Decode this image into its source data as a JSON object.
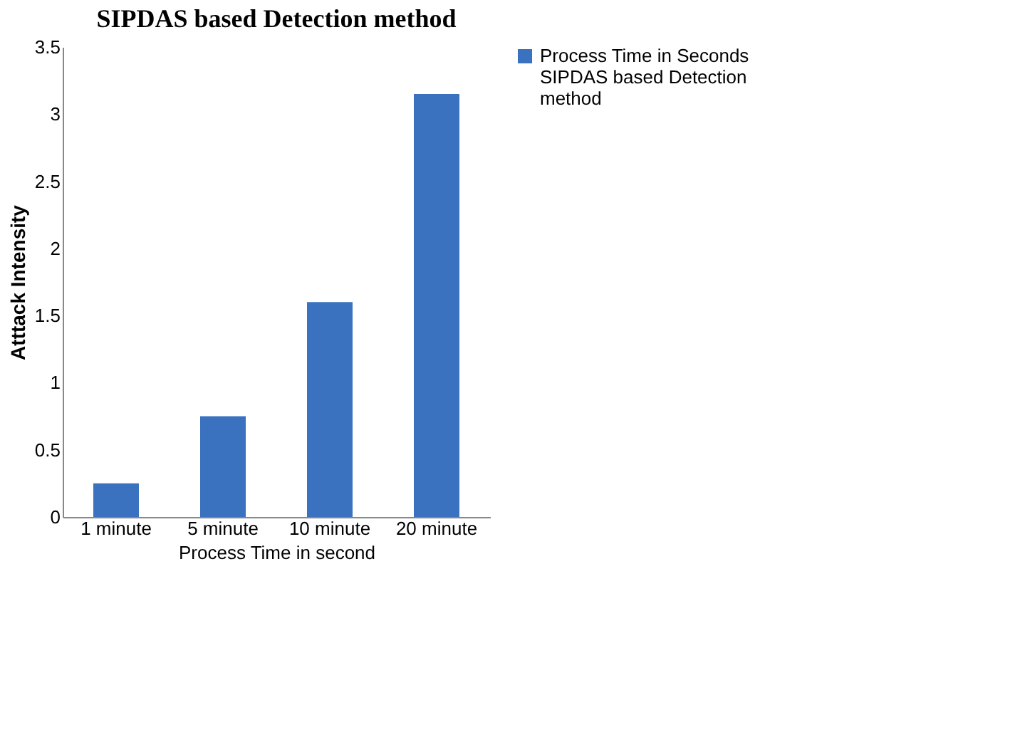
{
  "chart_data": {
    "type": "bar",
    "title": "SIPDAS based  Detection method",
    "xlabel": "Process Time  in second",
    "ylabel": "Atttack Intensity",
    "categories": [
      "1 minute",
      "5 minute",
      "10 minute",
      "20 minute"
    ],
    "series": [
      {
        "name": "Process Time in Seconds SIPDAS based  Detection method",
        "color": "#3a72c0",
        "values": [
          0.25,
          0.75,
          1.6,
          3.15
        ]
      }
    ],
    "ylim": [
      0,
      3.5
    ],
    "yticks": [
      0,
      0.5,
      1,
      1.5,
      2,
      2.5,
      3,
      3.5
    ],
    "grid": false,
    "legend": "right"
  }
}
